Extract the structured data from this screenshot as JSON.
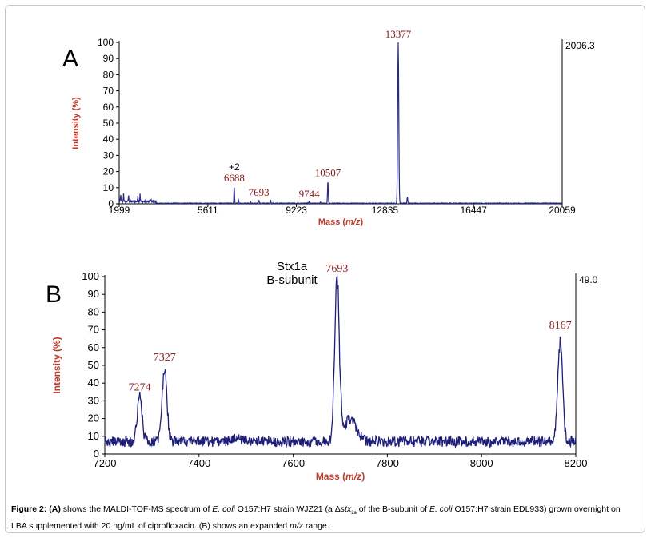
{
  "chart_data": [
    {
      "panel": "A",
      "type": "line",
      "xlabel_prefix": "Mass (",
      "xlabel_italic": "m/z",
      "xlabel_suffix": ")",
      "ylabel": "Intensity (%)",
      "xlim": [
        1999,
        20059
      ],
      "ylim": [
        0,
        100
      ],
      "x_ticks": [
        1999,
        5611,
        9223,
        12835,
        16447,
        20059
      ],
      "y_ticks": [
        0,
        10,
        20,
        30,
        40,
        50,
        60,
        70,
        80,
        90,
        100
      ],
      "scale_value": "2006.3",
      "series": [
        {
          "color": "#2a2a8a",
          "peaks": [
            {
              "x": 2060,
              "y": 4,
              "w": 12
            },
            {
              "x": 2180,
              "y": 5,
              "w": 10
            },
            {
              "x": 2380,
              "y": 4,
              "w": 10
            },
            {
              "x": 2760,
              "y": 4,
              "w": 10
            },
            {
              "x": 2850,
              "y": 5,
              "w": 10
            },
            {
              "x": 3300,
              "y": 1,
              "w": 20
            },
            {
              "x": 6688,
              "y": 11,
              "w": 12
            },
            {
              "x": 6860,
              "y": 2,
              "w": 12
            },
            {
              "x": 7350,
              "y": 1,
              "w": 12
            },
            {
              "x": 7693,
              "y": 2,
              "w": 12
            },
            {
              "x": 8167,
              "y": 2,
              "w": 12
            },
            {
              "x": 9744,
              "y": 1,
              "w": 12
            },
            {
              "x": 10200,
              "y": 1,
              "w": 12
            },
            {
              "x": 10507,
              "y": 14,
              "w": 14
            },
            {
              "x": 13377,
              "y": 100,
              "w": 22
            },
            {
              "x": 13750,
              "y": 4,
              "w": 14
            }
          ]
        }
      ],
      "annotations": [
        {
          "x": 6688,
          "y": 11,
          "label": "6688",
          "extra": "+2"
        },
        {
          "x": 7693,
          "y": 2,
          "label": "7693"
        },
        {
          "x": 9744,
          "y": 1,
          "label": "9744"
        },
        {
          "x": 10507,
          "y": 14,
          "label": "10507"
        },
        {
          "x": 13377,
          "y": 100,
          "label": "13377"
        }
      ]
    },
    {
      "panel": "B",
      "type": "line",
      "xlabel_prefix": "Mass (",
      "xlabel_italic": "m/z",
      "xlabel_suffix": ")",
      "ylabel": "Intensity (%)",
      "xlim": [
        7200,
        8200
      ],
      "ylim": [
        0,
        100
      ],
      "x_ticks": [
        7200,
        7400,
        7600,
        7800,
        8000,
        8200
      ],
      "y_ticks": [
        0,
        10,
        20,
        30,
        40,
        50,
        60,
        70,
        80,
        90,
        100
      ],
      "scale_value": "49.0",
      "annotation_lines": [
        "Stx1a",
        "B-subunit"
      ],
      "series": [
        {
          "color": "#1f1f7a",
          "baseline": 7,
          "noise": 3,
          "peaks": [
            {
              "x": 7274,
              "y": 33,
              "w": 5
            },
            {
              "x": 7327,
              "y": 50,
              "w": 5
            },
            {
              "x": 7480,
              "y": 9,
              "w": 12
            },
            {
              "x": 7693,
              "y": 100,
              "w": 5
            },
            {
              "x": 7720,
              "y": 20,
              "w": 14
            },
            {
              "x": 8167,
              "y": 68,
              "w": 5
            }
          ]
        }
      ],
      "annotations": [
        {
          "x": 7274,
          "y": 33,
          "label": "7274"
        },
        {
          "x": 7327,
          "y": 50,
          "label": "7327"
        },
        {
          "x": 7693,
          "y": 100,
          "label": "7693"
        },
        {
          "x": 8167,
          "y": 68,
          "label": "8167"
        }
      ]
    }
  ],
  "caption": {
    "fig": "Figure 2:",
    "a_tag": "(A)",
    "t1": " shows the MALDI-TOF-MS spectrum of ",
    "ecoli1": "E. coli",
    "t2": " O157:H7 strain WJZ21 (a Δ",
    "stx": "stx",
    "stx_sub": "2a",
    "t3": " of the B-subunit of ",
    "ecoli2": "E. coli",
    "t4": " O157:H7 strain EDL933) grown overnight on LBA supplemented with 20 ng/mL of ciprofloxacin. (B) shows an expanded ",
    "mz": "m/z",
    "t5": " range."
  }
}
